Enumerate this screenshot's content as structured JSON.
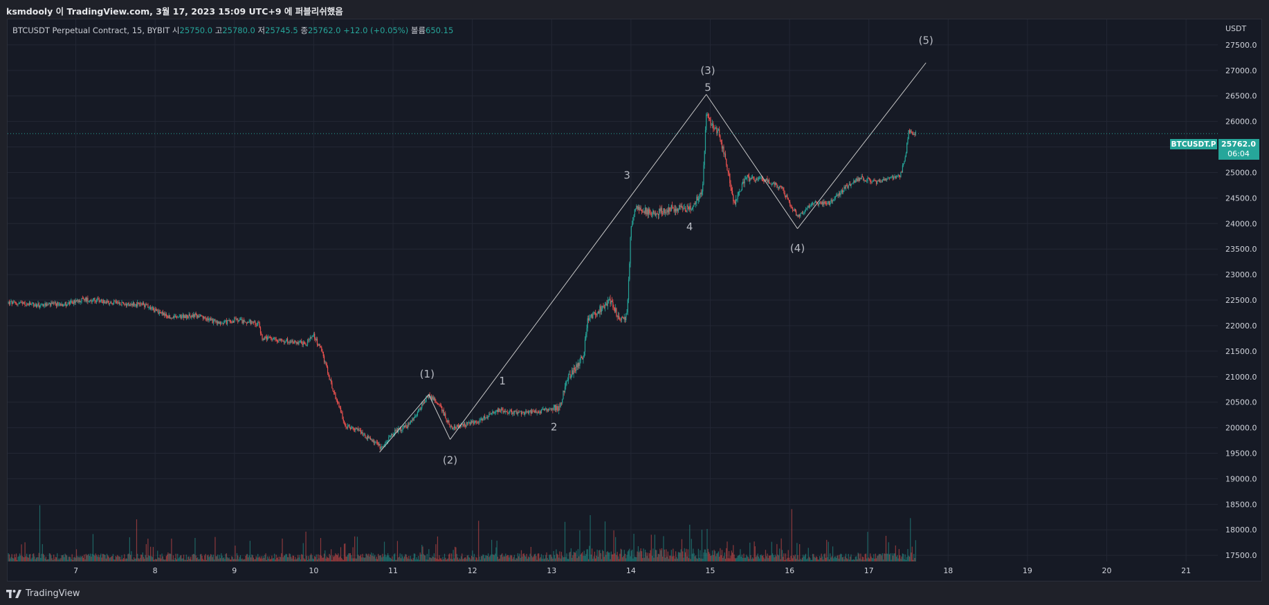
{
  "header": {
    "caption": "ksmdooly 이 TradingView.com, 3월 17, 2023 15:09 UTC+9 에 퍼블리쉬했음"
  },
  "legend": {
    "symbol": "BTCUSDT Perpetual Contract, 15, BYBIT",
    "open_label": "시",
    "open": "25750.0",
    "high_label": "고",
    "high": "25780.0",
    "low_label": "저",
    "low": "25745.5",
    "close_label": "종",
    "close": "25762.0",
    "change": "+12.0 (+0.05%)",
    "volume_label": "볼륨",
    "volume": "650.15"
  },
  "price_tag": {
    "symbol": "BTCUSDT.P",
    "price": "25762.0",
    "countdown": "06:04"
  },
  "brand": {
    "name": "TradingView"
  },
  "colors": {
    "up": "#26a69a",
    "down": "#ef5350",
    "background": "#161a25",
    "grid": "#232734",
    "wave": "#c8c8c8"
  },
  "chart_data": {
    "type": "candlestick",
    "currency": "USDT",
    "y_ticks": [
      17500,
      18000,
      18500,
      19000,
      19500,
      20000,
      20500,
      21000,
      21500,
      22000,
      22500,
      23000,
      23500,
      24000,
      24500,
      25000,
      25500,
      26000,
      26500,
      27000,
      27500
    ],
    "y_tick_labels": [
      "17500.0",
      "18000.0",
      "18500.0",
      "19000.0",
      "19500.0",
      "20000.0",
      "20500.0",
      "21000.0",
      "21500.0",
      "22000.0",
      "22500.0",
      "23000.0",
      "23500.0",
      "24000.0",
      "24500.0",
      "25000.0",
      "25500.0",
      "26000.0",
      "26500.0",
      "27000.0",
      "27500.0"
    ],
    "ylim": [
      17380,
      28000
    ],
    "x_ticks": [
      7,
      8,
      9,
      10,
      11,
      12,
      13,
      14,
      15,
      16,
      17,
      18,
      19,
      20,
      21
    ],
    "xlim": [
      6.14,
      21.4
    ],
    "last_price": 25762.0,
    "price_path": [
      [
        6.15,
        22450
      ],
      [
        6.5,
        22400
      ],
      [
        6.9,
        22430
      ],
      [
        7.1,
        22520
      ],
      [
        7.5,
        22450
      ],
      [
        7.9,
        22400
      ],
      [
        8.0,
        22300
      ],
      [
        8.2,
        22150
      ],
      [
        8.5,
        22200
      ],
      [
        8.8,
        22050
      ],
      [
        9.0,
        22100
      ],
      [
        9.3,
        22050
      ],
      [
        9.35,
        21750
      ],
      [
        9.6,
        21720
      ],
      [
        9.9,
        21650
      ],
      [
        10.0,
        21800
      ],
      [
        10.1,
        21500
      ],
      [
        10.25,
        20700
      ],
      [
        10.4,
        20050
      ],
      [
        10.6,
        19900
      ],
      [
        10.86,
        19600
      ],
      [
        11.0,
        19900
      ],
      [
        11.2,
        20050
      ],
      [
        11.45,
        20650
      ],
      [
        11.6,
        20400
      ],
      [
        11.73,
        20000
      ],
      [
        11.9,
        20050
      ],
      [
        12.1,
        20150
      ],
      [
        12.3,
        20350
      ],
      [
        12.5,
        20300
      ],
      [
        12.8,
        20300
      ],
      [
        13.1,
        20400
      ],
      [
        13.2,
        20950
      ],
      [
        13.4,
        21400
      ],
      [
        13.45,
        22100
      ],
      [
        13.6,
        22300
      ],
      [
        13.75,
        22500
      ],
      [
        13.85,
        22100
      ],
      [
        13.95,
        22200
      ],
      [
        14.0,
        23900
      ],
      [
        14.05,
        24300
      ],
      [
        14.3,
        24200
      ],
      [
        14.5,
        24300
      ],
      [
        14.75,
        24300
      ],
      [
        14.9,
        24600
      ],
      [
        14.95,
        26100
      ],
      [
        15.1,
        25800
      ],
      [
        15.2,
        25200
      ],
      [
        15.3,
        24400
      ],
      [
        15.45,
        24900
      ],
      [
        15.7,
        24850
      ],
      [
        15.9,
        24700
      ],
      [
        16.0,
        24400
      ],
      [
        16.1,
        24150
      ],
      [
        16.3,
        24400
      ],
      [
        16.5,
        24400
      ],
      [
        16.7,
        24700
      ],
      [
        16.9,
        24900
      ],
      [
        17.1,
        24800
      ],
      [
        17.4,
        24950
      ],
      [
        17.47,
        25400
      ],
      [
        17.5,
        25800
      ],
      [
        17.6,
        25762
      ]
    ],
    "wave_lines": [
      {
        "from": [
          10.83,
          19520
        ],
        "to": [
          11.45,
          20650
        ]
      },
      {
        "from": [
          11.45,
          20650
        ],
        "to": [
          11.72,
          19770
        ]
      },
      {
        "from": [
          11.72,
          19770
        ],
        "to": [
          14.95,
          26530
        ]
      },
      {
        "from": [
          14.95,
          26530
        ],
        "to": [
          16.1,
          23900
        ]
      },
      {
        "from": [
          16.1,
          23900
        ],
        "to": [
          17.72,
          27150
        ]
      }
    ],
    "wave_labels": [
      {
        "text": "(1)",
        "x": 11.43,
        "y": 20980
      },
      {
        "text": "(2)",
        "x": 11.72,
        "y": 19300
      },
      {
        "text": "(3)",
        "x": 14.97,
        "y": 26930
      },
      {
        "text": "(4)",
        "x": 16.1,
        "y": 23450
      },
      {
        "text": "(5)",
        "x": 17.72,
        "y": 27520
      },
      {
        "text": "1",
        "x": 12.38,
        "y": 20850
      },
      {
        "text": "2",
        "x": 13.03,
        "y": 19950
      },
      {
        "text": "3",
        "x": 13.95,
        "y": 24880
      },
      {
        "text": "4",
        "x": 14.74,
        "y": 23870
      },
      {
        "text": "5",
        "x": 14.97,
        "y": 26600
      }
    ]
  }
}
